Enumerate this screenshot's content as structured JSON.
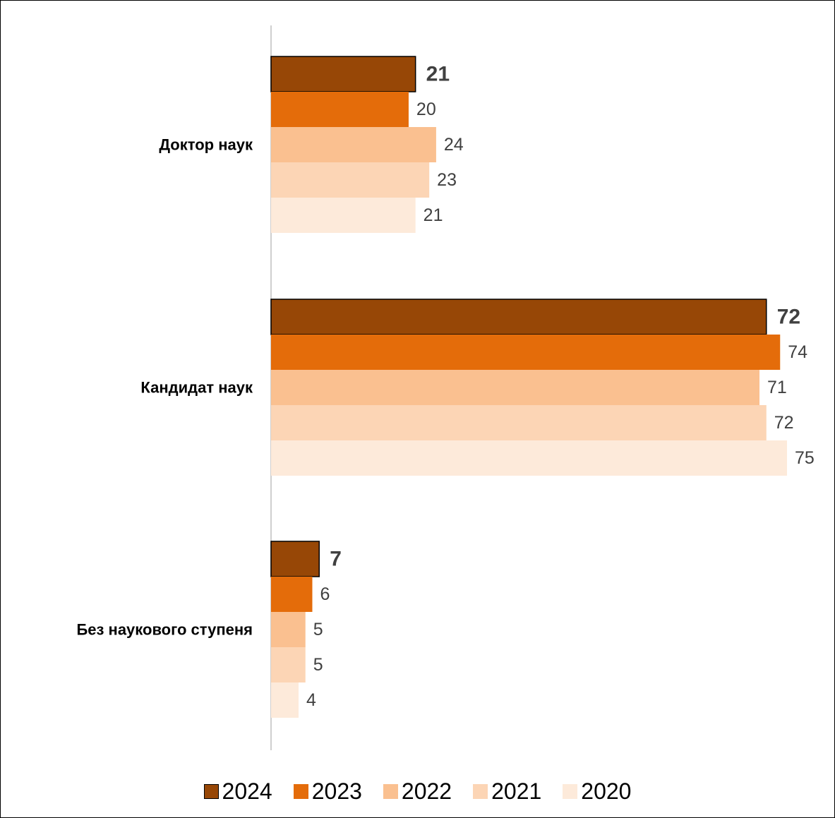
{
  "chart_data": {
    "type": "bar",
    "orientation": "horizontal",
    "categories": [
      "Доктор наук",
      "Кандидат наук",
      "Без наукового ступеня"
    ],
    "series": [
      {
        "name": "2024",
        "values": [
          21,
          72,
          7
        ],
        "color": "#974706",
        "outline": "#000000",
        "label_style": "bold"
      },
      {
        "name": "2023",
        "values": [
          20,
          74,
          6
        ],
        "color": "#E46C0A"
      },
      {
        "name": "2022",
        "values": [
          24,
          71,
          5
        ],
        "color": "#FAC090"
      },
      {
        "name": "2021",
        "values": [
          23,
          72,
          5
        ],
        "color": "#FCD5B5"
      },
      {
        "name": "2020",
        "values": [
          21,
          75,
          4
        ],
        "color": "#FDEADA"
      }
    ],
    "xlim": [
      0,
      75
    ],
    "grid": false,
    "legend": "bottom",
    "title": "",
    "xlabel": "",
    "ylabel": ""
  }
}
